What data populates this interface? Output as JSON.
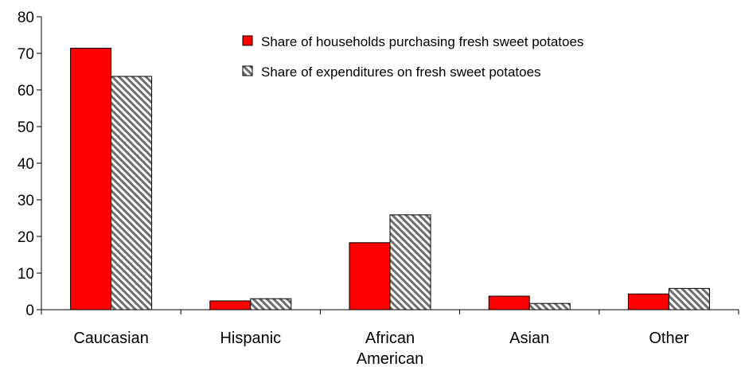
{
  "chart_data": {
    "type": "bar",
    "categories": [
      [
        "Caucasian"
      ],
      [
        "Hispanic"
      ],
      [
        "African",
        "American"
      ],
      [
        "Asian"
      ],
      [
        "Other"
      ]
    ],
    "series": [
      {
        "name": "Share of households purchasing fresh sweet potatoes",
        "values": [
          71.4,
          2.4,
          18.3,
          3.7,
          4.3
        ],
        "color": "#ff0000",
        "pattern": "solid"
      },
      {
        "name": "Share of expenditures on fresh sweet potatoes",
        "values": [
          63.7,
          3.0,
          25.9,
          1.7,
          5.8
        ],
        "color": "#808080",
        "pattern": "diagonal-hatch"
      }
    ],
    "ylim": [
      0,
      80
    ],
    "yticks": [
      0,
      10,
      20,
      30,
      40,
      50,
      60,
      70,
      80
    ],
    "legend_position": "top-right",
    "grid": false
  }
}
